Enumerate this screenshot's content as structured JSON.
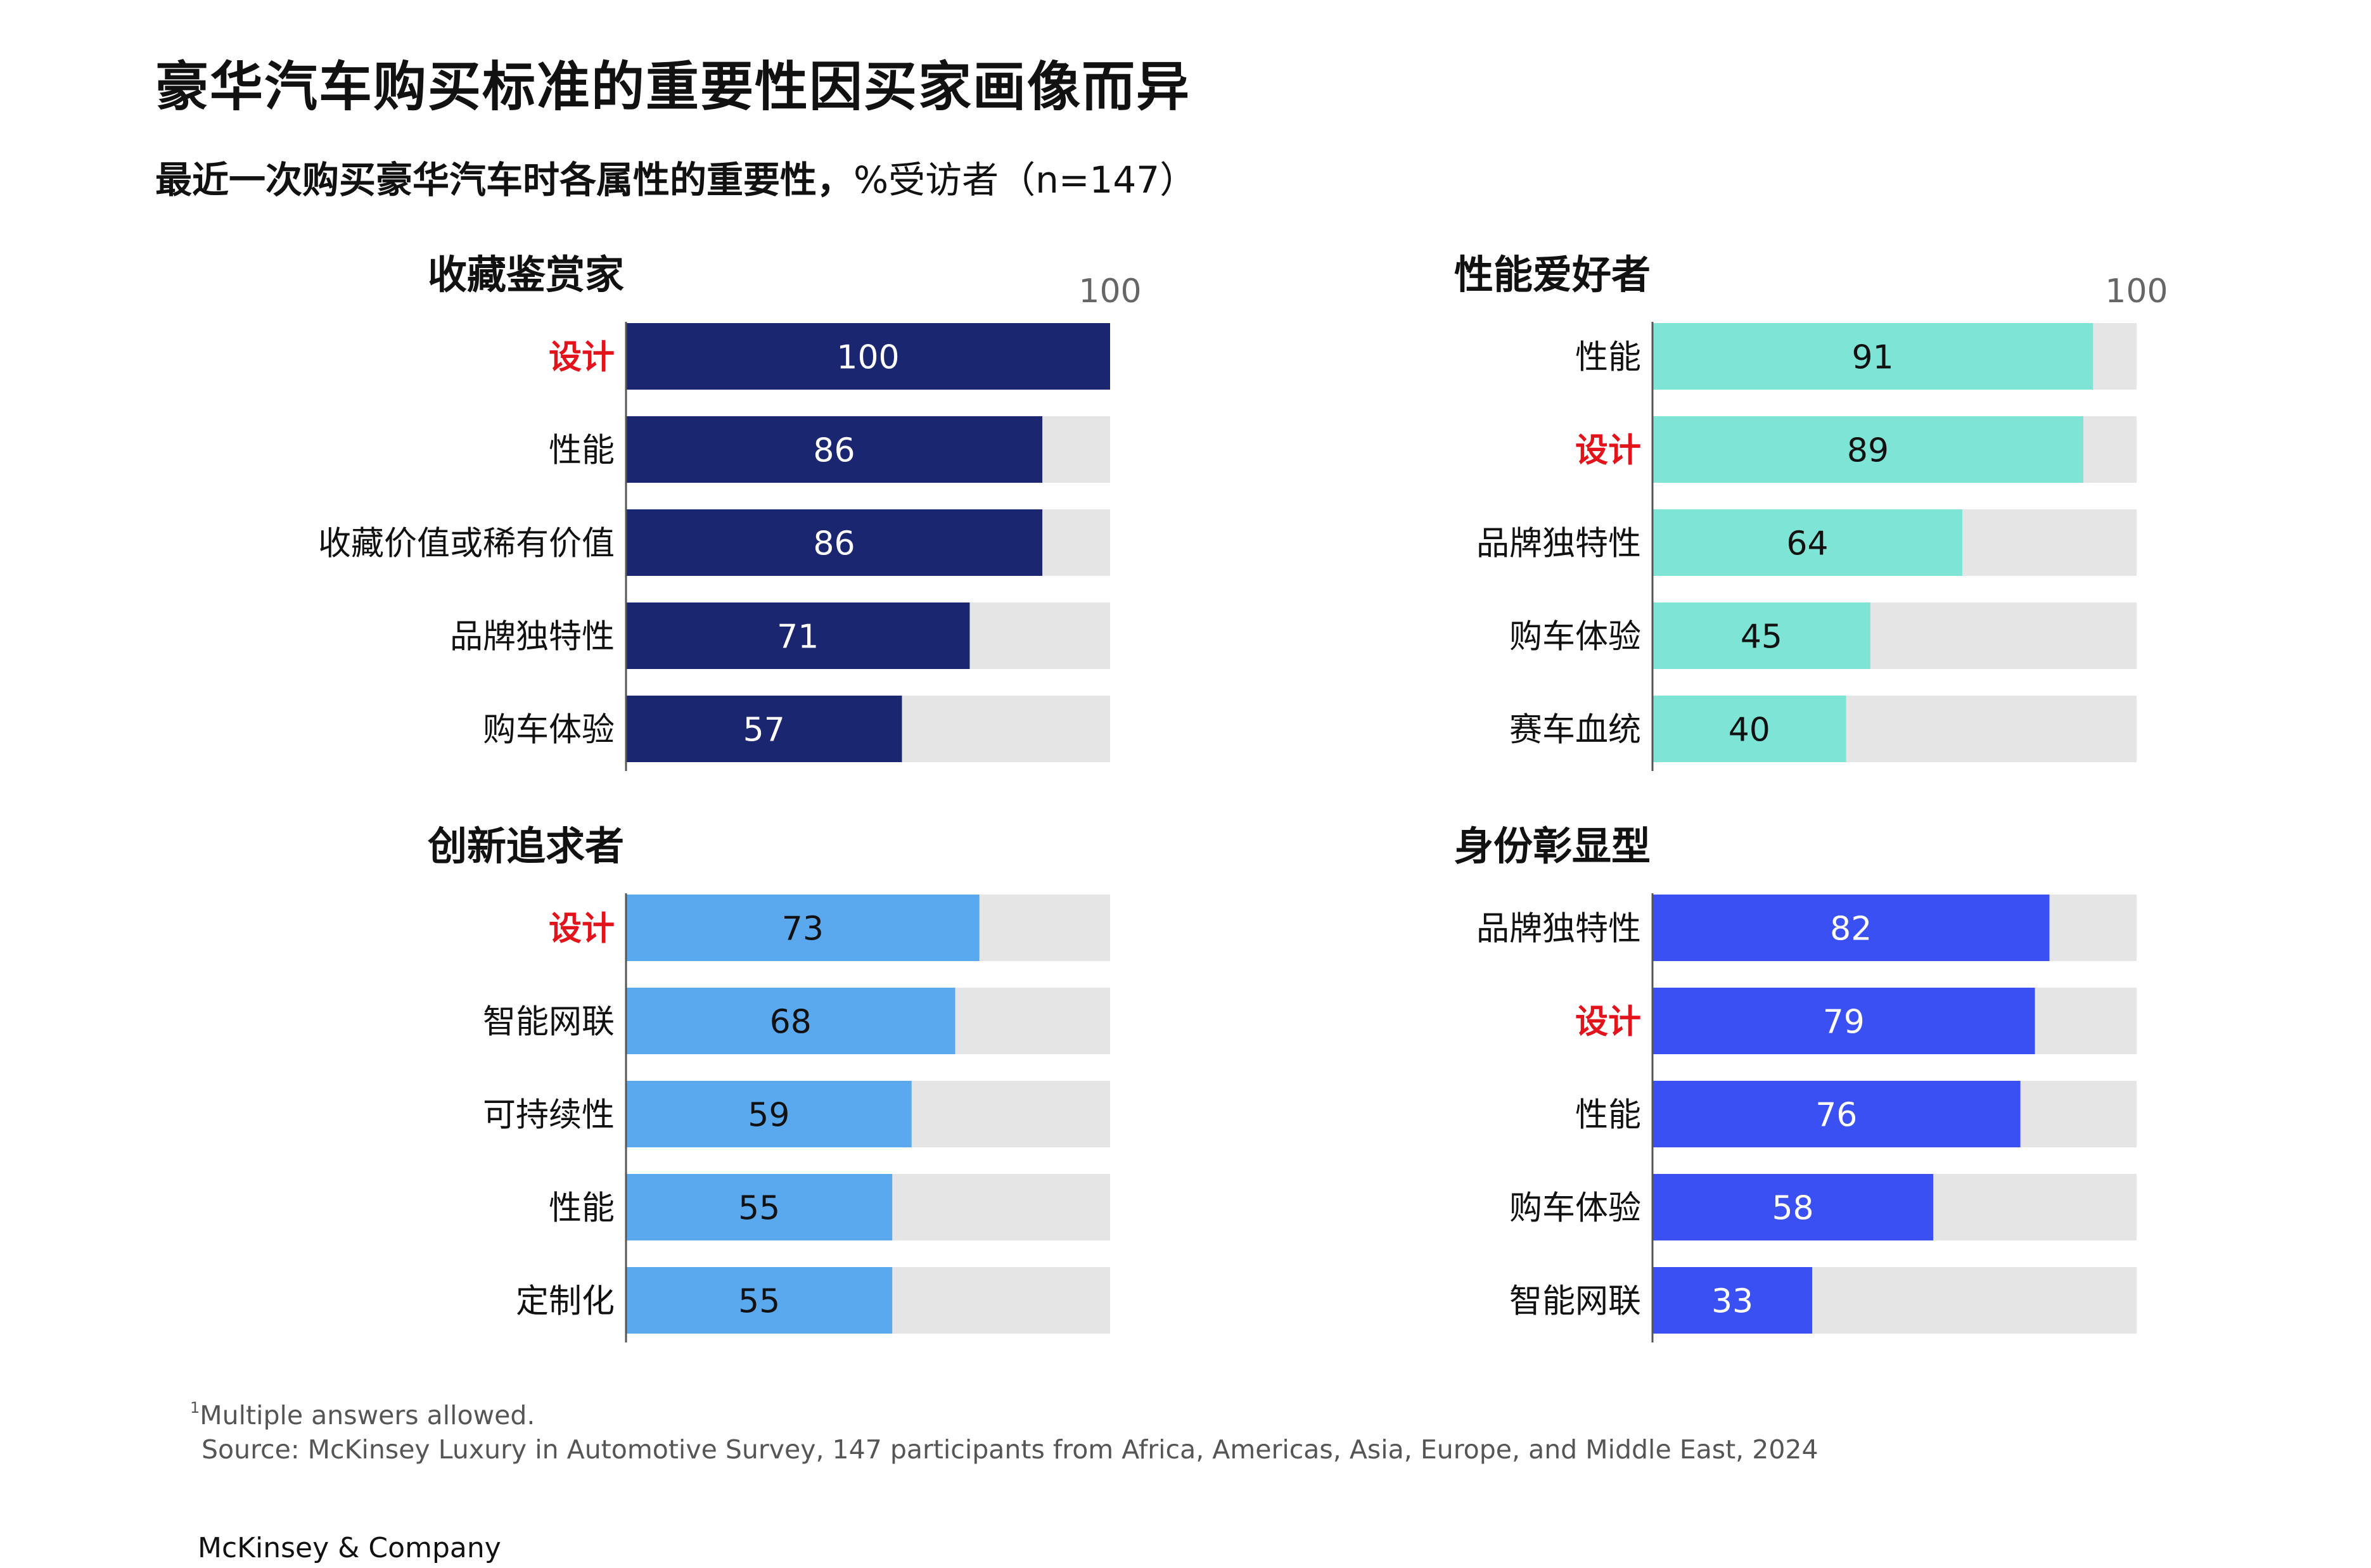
{
  "title": "豪华汽车购买标准的重要性因买家画像而异",
  "subtitle_bold": "最近一次购买豪华汽车时各属性的重要性，",
  "subtitle_normal": "%受访者（n=147）",
  "footnote": {
    "marker": "1",
    "note": "Multiple answers allowed.",
    "source": "Source: McKinsey Luxury in Automotive Survey, 147 participants from Africa, Americas, Asia, Europe, and Middle East, 2024"
  },
  "brand": "McKinsey & Company",
  "colors": {
    "track": "#e5e5e5",
    "highlight_label": "#e3131b"
  },
  "chart_data": [
    {
      "type": "bar",
      "orientation": "horizontal",
      "title": "收藏鉴赏家",
      "categories": [
        "设计",
        "性能",
        "收藏价值或稀有价值",
        "品牌独特性",
        "购车体验"
      ],
      "values": [
        100,
        86,
        86,
        71,
        57
      ],
      "highlight": [
        "设计"
      ],
      "xlim": [
        0,
        100
      ],
      "max_label": "100",
      "color": "#1b2670",
      "value_text_color": "#ffffff"
    },
    {
      "type": "bar",
      "orientation": "horizontal",
      "title": "性能爱好者",
      "categories": [
        "性能",
        "设计",
        "品牌独特性",
        "购车体验",
        "赛车血统"
      ],
      "values": [
        91,
        89,
        64,
        45,
        40
      ],
      "highlight": [
        "设计"
      ],
      "xlim": [
        0,
        100
      ],
      "max_label": "100",
      "color": "#7ee4d5",
      "value_text_color": "#111111"
    },
    {
      "type": "bar",
      "orientation": "horizontal",
      "title": "创新追求者",
      "categories": [
        "设计",
        "智能网联",
        "可持续性",
        "性能",
        "定制化"
      ],
      "values": [
        73,
        68,
        59,
        55,
        55
      ],
      "highlight": [
        "设计"
      ],
      "xlim": [
        0,
        100
      ],
      "max_label": "",
      "color": "#5aa9ee",
      "value_text_color": "#111111"
    },
    {
      "type": "bar",
      "orientation": "horizontal",
      "title": "身份彰显型",
      "categories": [
        "品牌独特性",
        "设计",
        "性能",
        "购车体验",
        "智能网联"
      ],
      "values": [
        82,
        79,
        76,
        58,
        33
      ],
      "highlight": [
        "设计"
      ],
      "xlim": [
        0,
        100
      ],
      "max_label": "",
      "color": "#3b50f2",
      "value_text_color": "#ffffff"
    }
  ]
}
